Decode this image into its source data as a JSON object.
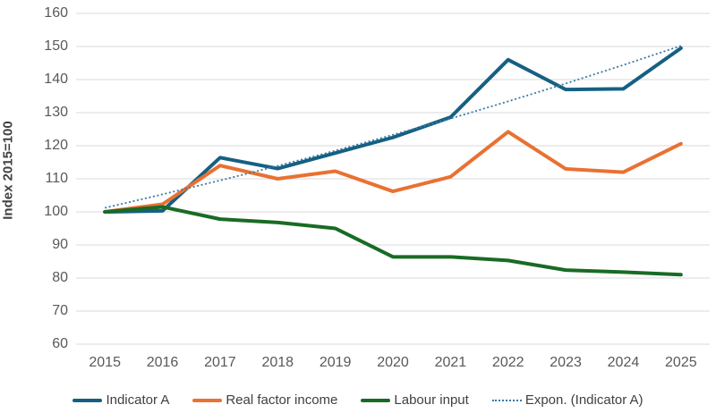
{
  "chart_data": {
    "type": "line",
    "title": "",
    "xlabel": "",
    "ylabel": "Index 2015=100",
    "ylim": [
      60,
      160
    ],
    "ytick_step": 10,
    "grid": "horizontal",
    "legend_position": "bottom",
    "x": [
      2015,
      2016,
      2017,
      2018,
      2019,
      2020,
      2021,
      2022,
      2023,
      2024,
      2025
    ],
    "series": [
      {
        "name": "Indicator A",
        "style": "solid",
        "color": "#156082",
        "values": [
          100,
          100.3,
          116.4,
          113.1,
          117.8,
          122.5,
          128.6,
          146.0,
          137.0,
          137.2,
          149.5
        ]
      },
      {
        "name": "Real factor income",
        "style": "solid",
        "color": "#E97132",
        "values": [
          100,
          102.3,
          114.0,
          110.0,
          112.3,
          106.2,
          110.6,
          124.2,
          113.0,
          112.0,
          120.6
        ]
      },
      {
        "name": "Labour input",
        "style": "solid",
        "color": "#196B24",
        "values": [
          100,
          101.5,
          97.8,
          96.8,
          95.0,
          86.4,
          86.4,
          85.3,
          82.4,
          81.8,
          81.0
        ]
      },
      {
        "name": "Expon. (Indicator A)",
        "style": "dotted",
        "color": "#3A78A4",
        "values": [
          101.2,
          105.3,
          109.5,
          113.9,
          118.5,
          123.3,
          128.2,
          133.4,
          138.8,
          144.4,
          150.2
        ]
      }
    ]
  },
  "colors": {
    "gridline": "#D9D9D9",
    "tick_text": "#595959",
    "label_text": "#404040",
    "background": "#FFFFFF"
  }
}
